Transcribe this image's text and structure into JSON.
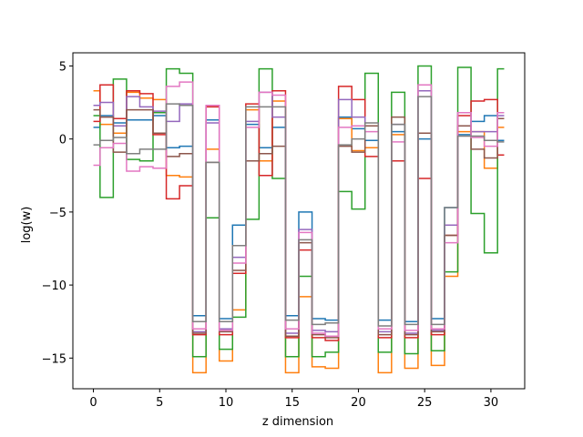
{
  "chart_data": {
    "type": "line",
    "drawstyle": "steps-mid",
    "xlabel": "z dimension",
    "ylabel": "log(w)",
    "xlim": [
      -1.55,
      32.55
    ],
    "ylim": [
      -17.1,
      5.9
    ],
    "xticks": [
      0,
      5,
      10,
      15,
      20,
      25,
      30
    ],
    "yticks": [
      5,
      0,
      -5,
      -10,
      -15
    ],
    "ytick_labels": [
      "5",
      "0",
      "−5",
      "−10",
      "−15"
    ],
    "grid": false,
    "x": [
      0,
      1,
      2,
      3,
      4,
      5,
      6,
      7,
      8,
      9,
      10,
      11,
      12,
      13,
      14,
      15,
      16,
      17,
      18,
      19,
      20,
      21,
      22,
      23,
      24,
      25,
      26,
      27,
      28,
      29,
      30,
      31
    ],
    "series": [
      {
        "color": "#1f77b4",
        "values": [
          0.8,
          1.6,
          1.1,
          1.3,
          1.3,
          1.6,
          -0.6,
          -0.5,
          -12.1,
          1.3,
          -12.3,
          -5.9,
          1.0,
          -0.6,
          0.8,
          -12.1,
          -5.0,
          -12.3,
          -12.4,
          1.5,
          0.7,
          -0.1,
          -12.4,
          0.5,
          -12.5,
          0.0,
          -12.3,
          -4.7,
          0.3,
          1.2,
          1.6,
          -0.1
        ]
      },
      {
        "color": "#ff7f0e",
        "values": [
          3.3,
          1.0,
          0.4,
          3.2,
          2.8,
          2.7,
          -2.5,
          -2.6,
          -16.0,
          -0.7,
          -15.2,
          -11.7,
          2.0,
          -1.5,
          2.6,
          -16.0,
          -10.8,
          -15.6,
          -15.7,
          1.4,
          -0.8,
          -0.6,
          -16.0,
          0.3,
          -15.7,
          0.4,
          -15.5,
          -9.4,
          0.5,
          0.5,
          -2.0,
          0.8
        ]
      },
      {
        "color": "#2ca02c",
        "values": [
          1.6,
          -4.0,
          4.1,
          -1.4,
          -1.5,
          1.8,
          4.8,
          4.5,
          -14.9,
          -5.4,
          -14.4,
          -12.2,
          -5.5,
          4.8,
          -2.7,
          -14.9,
          -9.4,
          -14.9,
          -14.6,
          -3.6,
          -4.8,
          4.5,
          -14.6,
          3.2,
          -14.7,
          5.0,
          -14.5,
          -9.1,
          4.9,
          -5.1,
          -7.8,
          4.8
        ]
      },
      {
        "color": "#d62728",
        "values": [
          1.2,
          3.7,
          1.4,
          3.3,
          3.1,
          0.3,
          -4.1,
          -3.2,
          -13.4,
          2.2,
          -13.4,
          -9.2,
          2.4,
          -2.5,
          3.3,
          -13.6,
          -7.6,
          -13.6,
          -13.8,
          3.6,
          2.7,
          -1.2,
          -13.6,
          -1.5,
          -13.6,
          -2.7,
          -13.4,
          -6.6,
          1.6,
          2.6,
          2.7,
          -1.1
        ]
      },
      {
        "color": "#9467bd",
        "values": [
          2.3,
          2.5,
          0.9,
          2.9,
          2.2,
          1.9,
          1.2,
          2.4,
          -13.2,
          1.1,
          -13.0,
          -8.1,
          1.2,
          3.2,
          1.5,
          -13.3,
          -6.2,
          -13.1,
          -13.2,
          2.7,
          1.5,
          0.9,
          -13.2,
          1.0,
          -13.3,
          3.3,
          -13.1,
          -5.9,
          1.8,
          0.5,
          0.5,
          1.6
        ]
      },
      {
        "color": "#8c564b",
        "values": [
          2.0,
          1.5,
          -0.9,
          2.0,
          2.0,
          0.4,
          -1.2,
          -1.0,
          -13.3,
          -1.6,
          -13.2,
          -9.0,
          -1.5,
          -1.0,
          -0.5,
          -13.5,
          -7.1,
          -13.4,
          -13.6,
          -0.5,
          -0.9,
          0.9,
          -13.4,
          1.5,
          -13.4,
          0.4,
          -13.2,
          -6.6,
          0.9,
          -0.7,
          -1.3,
          1.4
        ]
      },
      {
        "color": "#e377c2",
        "values": [
          -1.8,
          -0.6,
          -0.3,
          -2.2,
          -1.9,
          -2.0,
          3.6,
          3.9,
          -13.0,
          2.3,
          -13.1,
          -8.5,
          0.8,
          3.2,
          3.0,
          -13.0,
          -6.4,
          -13.3,
          -13.5,
          0.8,
          0.9,
          0.5,
          -13.0,
          -0.2,
          -13.1,
          3.7,
          -13.0,
          -7.1,
          1.8,
          0.1,
          -0.5,
          1.8
        ]
      },
      {
        "color": "#7f7f7f",
        "values": [
          -0.4,
          -0.1,
          0.1,
          -1.0,
          -0.7,
          -0.7,
          2.4,
          2.3,
          -12.5,
          -1.6,
          -12.5,
          -7.3,
          2.2,
          2.2,
          2.2,
          -12.4,
          -6.9,
          -12.7,
          -12.6,
          -0.4,
          0.0,
          1.1,
          -12.8,
          1.0,
          -12.7,
          2.9,
          -12.7,
          -4.7,
          0.2,
          0.2,
          -0.1,
          -0.2
        ]
      }
    ]
  }
}
